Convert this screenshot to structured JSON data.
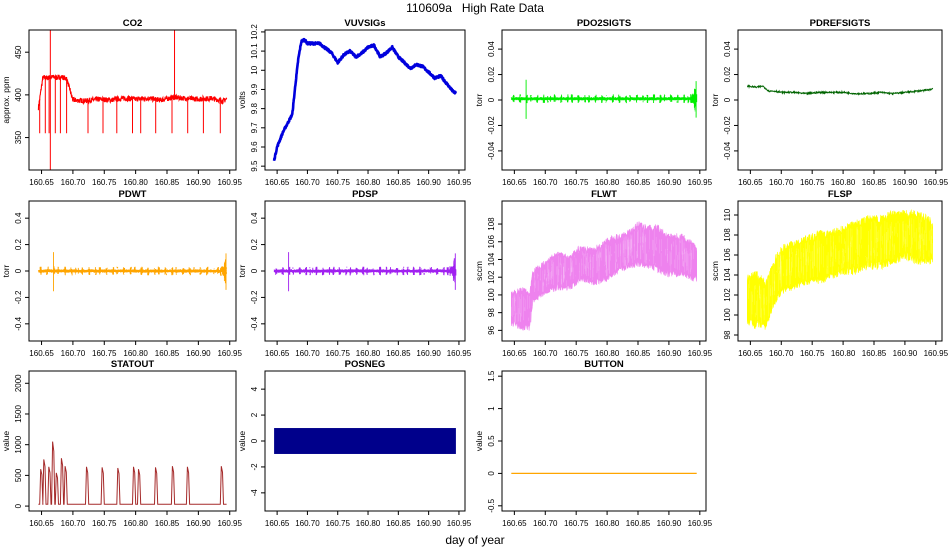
{
  "figure": {
    "title": "110609a   High Rate Data",
    "xlabel": "day of year"
  },
  "chart_data": [
    {
      "type": "line",
      "name": "co2",
      "title": "CO2",
      "ylabel": "approx. ppm",
      "color": "#ff0000",
      "xlim": [
        160.63,
        160.96
      ],
      "ylim": [
        312,
        476
      ],
      "xticks": [
        "160.65",
        "160.70",
        "160.75",
        "160.80",
        "160.85",
        "160.90",
        "160.95"
      ],
      "yticks": [
        350,
        400,
        450
      ],
      "series": [
        {
          "name": "CO2",
          "x": [
            160.645,
            160.652,
            160.66,
            160.667,
            160.675,
            160.682,
            160.69,
            160.7,
            160.72,
            160.74,
            160.76,
            160.78,
            160.8,
            160.82,
            160.84,
            160.86,
            160.88,
            160.9,
            160.92,
            160.94,
            160.945
          ],
          "y": [
            385,
            420,
            420,
            421,
            420,
            421,
            419,
            394,
            393,
            395,
            394,
            396,
            395,
            396,
            394,
            397,
            396,
            395,
            396,
            393,
            395
          ]
        }
      ]
    },
    {
      "type": "line",
      "name": "vuvsigs",
      "title": "VUVSIGs",
      "ylabel": "volts",
      "color": "#0000dd",
      "xlim": [
        160.63,
        160.96
      ],
      "ylim": [
        9.48,
        10.21
      ],
      "xticks": [
        "160.65",
        "160.70",
        "160.75",
        "160.80",
        "160.85",
        "160.90",
        "160.95"
      ],
      "yticks": [
        9.5,
        9.6,
        9.7,
        9.8,
        9.9,
        10.0,
        10.1,
        10.2
      ],
      "series": [
        {
          "name": "VUVSIGs",
          "x": [
            160.645,
            160.65,
            160.66,
            160.67,
            160.675,
            160.68,
            160.685,
            160.69,
            160.695,
            160.7,
            160.72,
            160.74,
            160.75,
            160.76,
            160.77,
            160.78,
            160.79,
            160.8,
            160.81,
            160.82,
            160.83,
            160.84,
            160.85,
            160.86,
            160.87,
            160.88,
            160.89,
            160.9,
            160.91,
            160.92,
            160.93,
            160.94,
            160.945
          ],
          "y": [
            9.53,
            9.6,
            9.68,
            9.74,
            9.77,
            9.92,
            10.06,
            10.15,
            10.16,
            10.14,
            10.14,
            10.09,
            10.04,
            10.08,
            10.1,
            10.07,
            10.09,
            10.12,
            10.13,
            10.07,
            10.09,
            10.12,
            10.07,
            10.04,
            10.01,
            10.03,
            10.02,
            9.99,
            9.96,
            9.97,
            9.93,
            9.89,
            9.88
          ]
        }
      ]
    },
    {
      "type": "line",
      "name": "pdo2sigts",
      "title": "PDO2SIGTS",
      "ylabel": "torr",
      "color": "#00ee00",
      "xlim": [
        160.63,
        160.96
      ],
      "ylim": [
        -0.055,
        0.055
      ],
      "xticks": [
        "160.65",
        "160.70",
        "160.75",
        "160.80",
        "160.85",
        "160.90",
        "160.95"
      ],
      "yticks": [
        -0.04,
        -0.02,
        0.0,
        0.02,
        0.04
      ],
      "series": [
        {
          "name": "PDO2SIGTS",
          "x": [
            160.645,
            160.945
          ],
          "y": [
            0.001,
            0.001
          ]
        }
      ]
    },
    {
      "type": "line",
      "name": "pdrefsigts",
      "title": "PDREFSIGTS",
      "ylabel": "torr",
      "color": "#006400",
      "xlim": [
        160.63,
        160.96
      ],
      "ylim": [
        -0.055,
        0.055
      ],
      "xticks": [
        "160.65",
        "160.70",
        "160.75",
        "160.80",
        "160.85",
        "160.90",
        "160.95"
      ],
      "yticks": [
        -0.04,
        -0.02,
        0.0,
        0.02,
        0.04
      ],
      "series": [
        {
          "name": "PDREFSIGTS",
          "x": [
            160.645,
            160.66,
            160.67,
            160.68,
            160.69,
            160.7,
            160.72,
            160.74,
            160.76,
            160.78,
            160.8,
            160.82,
            160.84,
            160.86,
            160.88,
            160.9,
            160.92,
            160.94,
            160.945
          ],
          "y": [
            0.011,
            0.01,
            0.011,
            0.007,
            0.007,
            0.006,
            0.006,
            0.005,
            0.006,
            0.006,
            0.006,
            0.005,
            0.005,
            0.006,
            0.005,
            0.006,
            0.007,
            0.008,
            0.009
          ]
        }
      ]
    },
    {
      "type": "line",
      "name": "pdwt",
      "title": "PDWT",
      "ylabel": "torr",
      "color": "#ffa500",
      "xlim": [
        160.63,
        160.96
      ],
      "ylim": [
        -0.53,
        0.53
      ],
      "xticks": [
        "160.65",
        "160.70",
        "160.75",
        "160.80",
        "160.85",
        "160.90",
        "160.95"
      ],
      "yticks": [
        -0.4,
        -0.2,
        0.0,
        0.2,
        0.4
      ],
      "series": [
        {
          "name": "PDWT",
          "x": [
            160.645,
            160.945
          ],
          "y": [
            0.0,
            0.0
          ]
        }
      ]
    },
    {
      "type": "line",
      "name": "pdsp",
      "title": "PDSP",
      "ylabel": "torr",
      "color": "#a020f0",
      "xlim": [
        160.63,
        160.96
      ],
      "ylim": [
        -0.53,
        0.53
      ],
      "xticks": [
        "160.65",
        "160.70",
        "160.75",
        "160.80",
        "160.85",
        "160.90",
        "160.95"
      ],
      "yticks": [
        -0.4,
        -0.2,
        0.0,
        0.2,
        0.4
      ],
      "series": [
        {
          "name": "PDSP",
          "x": [
            160.645,
            160.945
          ],
          "y": [
            0.0,
            0.0
          ]
        }
      ]
    },
    {
      "type": "area",
      "name": "flwt",
      "title": "FLWT",
      "ylabel": "sccm",
      "color": "#ee82ee",
      "xlim": [
        160.63,
        160.96
      ],
      "ylim": [
        94.8,
        110.6
      ],
      "xticks": [
        "160.65",
        "160.70",
        "160.75",
        "160.80",
        "160.85",
        "160.90",
        "160.95"
      ],
      "yticks": [
        96,
        98,
        100,
        102,
        104,
        106,
        108
      ],
      "series": [
        {
          "name": "FLWT max",
          "x": [
            160.645,
            160.66,
            160.675,
            160.68,
            160.69,
            160.7,
            160.72,
            160.74,
            160.75,
            160.76,
            160.78,
            160.8,
            160.82,
            160.84,
            160.85,
            160.86,
            160.88,
            160.9,
            160.92,
            160.94,
            160.945
          ],
          "y": [
            100.5,
            101,
            100.5,
            103,
            103.5,
            104,
            105,
            104.5,
            105.5,
            105.5,
            105.5,
            106.5,
            107,
            107.5,
            108.5,
            108,
            108,
            107,
            107,
            106,
            105.5
          ]
        },
        {
          "name": "FLWT min",
          "x": [
            160.645,
            160.66,
            160.675,
            160.68,
            160.69,
            160.7,
            160.72,
            160.74,
            160.75,
            160.76,
            160.78,
            160.8,
            160.82,
            160.84,
            160.85,
            160.86,
            160.88,
            160.9,
            160.92,
            160.94,
            160.945
          ],
          "y": [
            96.5,
            96,
            95.8,
            99,
            99.5,
            100,
            100.5,
            100.5,
            101,
            101.5,
            101,
            101.5,
            102.5,
            103,
            103,
            103,
            102.5,
            102,
            102,
            101.5,
            101.5
          ]
        }
      ]
    },
    {
      "type": "area",
      "name": "flsp",
      "title": "FLSP",
      "ylabel": "sccm",
      "color": "#ffff00",
      "xlim": [
        160.63,
        160.96
      ],
      "ylim": [
        97.4,
        111.4
      ],
      "xticks": [
        "160.65",
        "160.70",
        "160.75",
        "160.80",
        "160.85",
        "160.90",
        "160.95"
      ],
      "yticks": [
        98,
        100,
        102,
        104,
        106,
        108,
        110
      ],
      "series": [
        {
          "name": "FLSP max",
          "x": [
            160.645,
            160.66,
            160.675,
            160.69,
            160.7,
            160.72,
            160.74,
            160.76,
            160.78,
            160.8,
            160.82,
            160.84,
            160.86,
            160.88,
            160.9,
            160.92,
            160.94,
            160.945
          ],
          "y": [
            104,
            104.5,
            103.5,
            106,
            107,
            107.5,
            108,
            108.5,
            108.5,
            109,
            109.5,
            110,
            110,
            110.5,
            110.5,
            110.5,
            110,
            109.5
          ]
        },
        {
          "name": "FLSP min",
          "x": [
            160.645,
            160.66,
            160.675,
            160.69,
            160.7,
            160.72,
            160.74,
            160.76,
            160.78,
            160.8,
            160.82,
            160.84,
            160.86,
            160.88,
            160.9,
            160.92,
            160.94,
            160.945
          ],
          "y": [
            99,
            98.5,
            98.5,
            101,
            102,
            102.5,
            103,
            103,
            103.5,
            104,
            104,
            104.5,
            104.5,
            105,
            105.5,
            105,
            105,
            105
          ]
        }
      ]
    },
    {
      "type": "line",
      "name": "statout",
      "title": "STATOUT",
      "ylabel": "value",
      "color": "#a52a2a",
      "xlim": [
        160.63,
        160.96
      ],
      "ylim": [
        -80,
        2200
      ],
      "xticks": [
        "160.65",
        "160.70",
        "160.75",
        "160.80",
        "160.85",
        "160.90",
        "160.95"
      ],
      "yticks": [
        0,
        500,
        1000,
        1500,
        2000
      ],
      "series": [
        {
          "name": "STATOUT",
          "x": [
            160.645,
            160.945
          ],
          "y": [
            30,
            30
          ]
        }
      ]
    },
    {
      "type": "area",
      "name": "posneg",
      "title": "POSNEG",
      "ylabel": "value",
      "color": "#00008b",
      "xlim": [
        160.63,
        160.96
      ],
      "ylim": [
        -5.4,
        5.4
      ],
      "xticks": [
        "160.65",
        "160.70",
        "160.75",
        "160.80",
        "160.85",
        "160.90",
        "160.95"
      ],
      "yticks": [
        -4,
        -2,
        0,
        2,
        4
      ],
      "series": [
        {
          "name": "POSNEG max",
          "x": [
            160.645,
            160.945
          ],
          "y": [
            1,
            1
          ]
        },
        {
          "name": "POSNEG min",
          "x": [
            160.645,
            160.945
          ],
          "y": [
            -1,
            -1
          ]
        }
      ]
    },
    {
      "type": "line",
      "name": "button",
      "title": "BUTTON",
      "ylabel": "value",
      "color": "#ffa500",
      "xlim": [
        160.63,
        160.96
      ],
      "ylim": [
        -0.58,
        1.58
      ],
      "xticks": [
        "160.65",
        "160.70",
        "160.75",
        "160.80",
        "160.85",
        "160.90",
        "160.95"
      ],
      "yticks": [
        -0.5,
        0.0,
        0.5,
        1.0,
        1.5
      ],
      "series": [
        {
          "name": "BUTTON",
          "x": [
            160.645,
            160.945
          ],
          "y": [
            0.0,
            0.0
          ]
        }
      ]
    }
  ]
}
